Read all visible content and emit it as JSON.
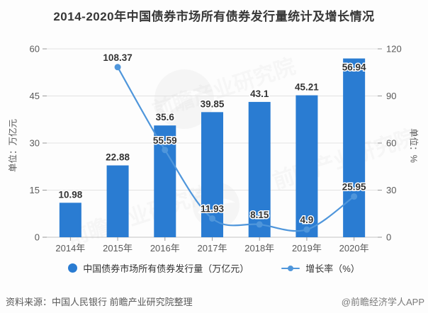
{
  "title": "2014-2020年中国债券市场所有债券发行量统计及增长情况",
  "chart_data": {
    "type": "bar",
    "title": "2014-2020年中国债券市场所有债券发行量统计及增长情况",
    "categories": [
      "2014年",
      "2015年",
      "2016年",
      "2017年",
      "2018年",
      "2019年",
      "2020年"
    ],
    "series": [
      {
        "name": "中国债券市场所有债券发行量（万亿元）",
        "type": "bar",
        "axis": "left",
        "color": "#2a7cd2",
        "values": [
          10.98,
          22.88,
          35.6,
          39.85,
          43.1,
          45.21,
          56.94
        ]
      },
      {
        "name": "增长率（%）",
        "type": "line",
        "axis": "right",
        "color": "#4f96db",
        "values": [
          null,
          108.37,
          55.59,
          11.93,
          8.15,
          4.9,
          25.95
        ]
      }
    ],
    "left_axis": {
      "title": "单位：万亿元",
      "min": 0,
      "max": 60,
      "ticks": [
        0,
        15,
        30,
        45,
        60
      ]
    },
    "right_axis": {
      "title": "单位：%",
      "min": 0,
      "max": 120,
      "ticks": [
        0,
        30,
        60,
        90,
        120
      ]
    },
    "legend_position": "bottom",
    "grid": true,
    "colors": {
      "bar": "#2a7cd2",
      "line": "#4f96db",
      "gridline": "#e2e2e2",
      "baseline": "#c2c2c2",
      "tick_text": "#595959",
      "value_label": "#333333"
    }
  },
  "footer": {
    "source": "资料来源：中国人民银行 前瞻产业研究院整理",
    "credit": "@前瞻经济学人APP"
  },
  "watermark": {
    "text": "前瞻产业研究院"
  }
}
